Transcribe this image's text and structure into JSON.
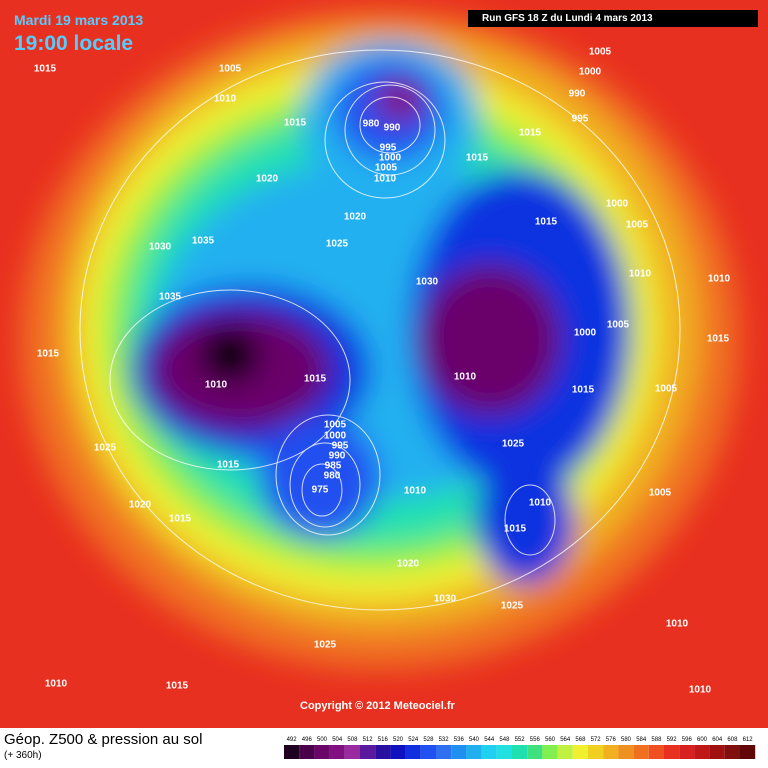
{
  "header": {
    "date": "Mardi 19 mars 2013",
    "time": "19:00 locale",
    "run": "Run GFS 18 Z du Lundi 4 mars 2013"
  },
  "map": {
    "isobar_labels": [
      1015,
      1005,
      1010,
      1015,
      1020,
      1030,
      1035,
      1035,
      1015,
      1010,
      1015,
      1025,
      1015,
      1020,
      1015,
      1005,
      1000,
      995,
      990,
      985,
      980,
      975,
      1010,
      980,
      990,
      995,
      1000,
      1005,
      1010,
      1015,
      1020,
      1025,
      1030,
      1015,
      1005,
      1000,
      990,
      995,
      1000,
      1005,
      1015,
      1010,
      1010,
      1000,
      1005,
      1015,
      1010,
      1015,
      1005,
      1025,
      1010,
      1015,
      1005,
      1020,
      1030,
      1025,
      1025,
      1010,
      1010,
      1015,
      1010
    ],
    "copyright": "Copyright © 2012 Meteociel.fr"
  },
  "footer": {
    "title": "Géop. Z500 & pression au sol",
    "lead": "(+ 360h)"
  },
  "scale": {
    "values": [
      492,
      496,
      500,
      504,
      508,
      512,
      516,
      520,
      524,
      528,
      532,
      536,
      540,
      544,
      548,
      552,
      556,
      560,
      564,
      568,
      572,
      576,
      580,
      584,
      588,
      592,
      596,
      600,
      604,
      608,
      612
    ],
    "colors": [
      "#200020",
      "#4a004a",
      "#6a066a",
      "#801080",
      "#9a2aa0",
      "#5a1aa0",
      "#2a10a0",
      "#1010c0",
      "#1030e0",
      "#2050f0",
      "#3070f0",
      "#2090f0",
      "#20b0f0",
      "#20d0f0",
      "#20e0e0",
      "#20e0b0",
      "#40e080",
      "#80f050",
      "#c0f040",
      "#f0f030",
      "#f0d020",
      "#f0b020",
      "#f09020",
      "#f07020",
      "#f05020",
      "#e83020",
      "#d82020",
      "#c01818",
      "#a01010",
      "#801010",
      "#600808"
    ]
  }
}
